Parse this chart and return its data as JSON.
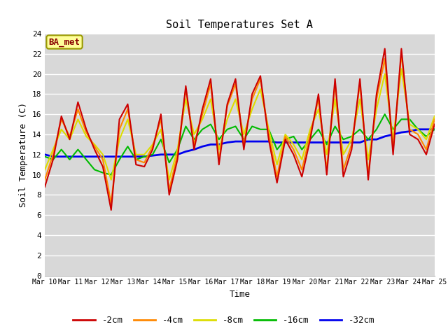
{
  "title": "Soil Temperatures Set A",
  "xlabel": "Time",
  "ylabel": "Soil Temperature (C)",
  "ylim": [
    0,
    24
  ],
  "yticks": [
    0,
    2,
    4,
    6,
    8,
    10,
    12,
    14,
    16,
    18,
    20,
    22,
    24
  ],
  "x_labels": [
    "Mar 10",
    "Mar 11",
    "Mar 12",
    "Mar 13",
    "Mar 14",
    "Mar 15",
    "Mar 16",
    "Mar 17",
    "Mar 18",
    "Mar 19",
    "Mar 20",
    "Mar 21",
    "Mar 22",
    "Mar 23",
    "Mar 24",
    "Mar 25"
  ],
  "colors": {
    "-2cm": "#cc0000",
    "-4cm": "#ff8800",
    "-8cm": "#dddd00",
    "-16cm": "#00bb00",
    "-32cm": "#0000ee"
  },
  "legend_labels": [
    "-2cm",
    "-4cm",
    "-8cm",
    "-16cm",
    "-32cm"
  ],
  "bg_color": "#d8d8d8",
  "annotation_text": "BA_met",
  "annotation_bg": "#ffff99",
  "annotation_border": "#999900",
  "annotation_text_color": "#880000",
  "series": {
    "-2cm": [
      8.8,
      11.5,
      15.8,
      13.5,
      17.2,
      14.5,
      12.5,
      10.8,
      6.5,
      15.5,
      17.0,
      11.0,
      10.8,
      12.5,
      16.0,
      8.0,
      11.5,
      18.8,
      12.5,
      16.5,
      19.5,
      11.0,
      17.0,
      19.5,
      12.5,
      18.0,
      19.8,
      13.5,
      9.2,
      13.5,
      12.0,
      9.8,
      13.5,
      18.0,
      10.0,
      19.5,
      9.8,
      12.5,
      19.5,
      9.5,
      18.0,
      22.5,
      12.0,
      22.5,
      14.0,
      13.5,
      12.0,
      15.0
    ],
    "-4cm": [
      9.5,
      12.0,
      15.5,
      13.8,
      16.5,
      14.2,
      12.8,
      11.5,
      7.2,
      14.5,
      16.5,
      11.5,
      11.2,
      12.8,
      15.5,
      8.5,
      12.0,
      18.5,
      13.0,
      16.0,
      19.0,
      11.5,
      16.8,
      19.0,
      13.0,
      17.5,
      19.5,
      14.0,
      9.8,
      13.8,
      12.5,
      10.5,
      14.0,
      17.5,
      10.5,
      19.0,
      10.5,
      13.0,
      19.0,
      10.0,
      17.5,
      21.5,
      12.5,
      22.0,
      14.5,
      14.0,
      12.5,
      15.5
    ],
    "-8cm": [
      10.5,
      12.5,
      14.5,
      13.5,
      15.5,
      13.8,
      13.0,
      12.0,
      9.5,
      13.5,
      15.5,
      12.0,
      12.0,
      13.0,
      14.5,
      9.5,
      12.5,
      17.5,
      14.0,
      15.5,
      17.5,
      12.5,
      15.5,
      17.5,
      14.0,
      16.5,
      18.5,
      14.5,
      11.0,
      14.0,
      13.0,
      11.5,
      14.5,
      16.5,
      12.0,
      17.5,
      12.0,
      13.5,
      17.5,
      11.5,
      16.5,
      20.0,
      13.5,
      20.5,
      15.0,
      14.5,
      13.5,
      15.8
    ],
    "-16cm": [
      11.8,
      11.5,
      12.5,
      11.5,
      12.5,
      11.5,
      10.5,
      10.2,
      10.0,
      11.5,
      12.8,
      11.5,
      11.8,
      12.0,
      13.5,
      11.2,
      12.5,
      14.8,
      13.5,
      14.5,
      15.0,
      13.5,
      14.5,
      14.8,
      13.5,
      14.8,
      14.5,
      14.5,
      12.5,
      13.5,
      13.8,
      12.5,
      13.5,
      14.5,
      13.0,
      14.8,
      13.5,
      13.8,
      14.5,
      13.5,
      14.5,
      16.0,
      14.5,
      15.5,
      15.5,
      14.5,
      13.8,
      14.5
    ],
    "-32cm": [
      12.0,
      11.8,
      11.8,
      11.8,
      11.8,
      11.8,
      11.8,
      11.8,
      11.8,
      11.8,
      11.8,
      11.8,
      11.8,
      11.9,
      12.0,
      12.0,
      12.0,
      12.3,
      12.5,
      12.8,
      13.0,
      13.0,
      13.2,
      13.3,
      13.3,
      13.3,
      13.3,
      13.3,
      13.2,
      13.2,
      13.2,
      13.2,
      13.2,
      13.2,
      13.2,
      13.2,
      13.2,
      13.2,
      13.2,
      13.5,
      13.5,
      13.8,
      14.0,
      14.2,
      14.3,
      14.5,
      14.5,
      14.5
    ]
  }
}
